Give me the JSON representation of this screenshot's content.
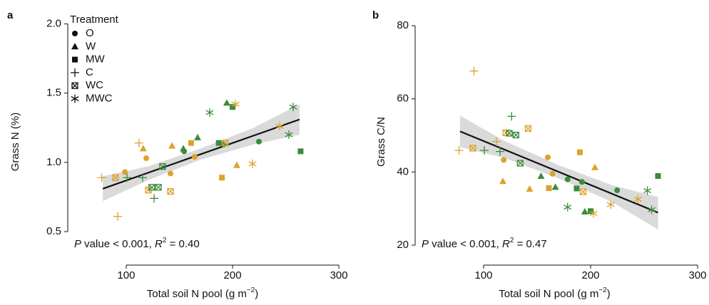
{
  "chart_data": [
    {
      "type": "scatter",
      "panel_label": "a",
      "xlabel": [
        {
          "text": "Total soil N pool (g m"
        },
        {
          "text": "−2",
          "sup": true
        },
        {
          "text": ")"
        }
      ],
      "ylabel": [
        {
          "text": "Grass N (%)"
        }
      ],
      "annotation": [
        {
          "text": "P",
          "italic": true
        },
        {
          "text": " value < 0.001, "
        },
        {
          "text": "R",
          "italic": true
        },
        {
          "text": "2",
          "sup": true
        },
        {
          "text": " = 0.40"
        }
      ],
      "legend_title": "Treatment",
      "legend": "upper left",
      "xlim": [
        47,
        310
      ],
      "ylim": [
        0.32,
        2.08
      ],
      "xticks": [
        100,
        200,
        300
      ],
      "yticks": [
        0.5,
        {
          "value": 1.0,
          "label": "1.0"
        },
        1.5,
        {
          "value": 2.0,
          "label": "2.0"
        }
      ],
      "series": [
        {
          "name": "O",
          "marker": "circle",
          "x": [
            118.8,
            141.6,
            154.4,
            164.4,
            191.9,
            224.8,
            98.7
          ],
          "values": [
            1.03,
            0.92,
            1.08,
            1.04,
            1.13,
            1.15,
            0.93
          ],
          "colors": [
            "#dca22b",
            "#dca22b",
            "#3b8b3a",
            "#dca22b",
            "#3b8b3a",
            "#3b8b3a",
            "#dca22b"
          ]
        },
        {
          "name": "W",
          "marker": "triangle",
          "x": [
            116,
            143,
            153.7,
            167.1,
            194.6,
            204
          ],
          "values": [
            1.1,
            1.12,
            1.1,
            1.18,
            1.43,
            0.98
          ],
          "colors": [
            "#dca22b",
            "#dca22b",
            "#3b8b3a",
            "#3b8b3a",
            "#3b8b3a",
            "#dca22b"
          ]
        },
        {
          "name": "MW",
          "marker": "square",
          "x": [
            161,
            187,
            200,
            190,
            264
          ],
          "values": [
            1.14,
            1.14,
            1.4,
            0.89,
            1.08
          ],
          "colors": [
            "#dca22b",
            "#3b8b3a",
            "#3b8b3a",
            "#dca22b",
            "#3b8b3a"
          ]
        },
        {
          "name": "C",
          "marker": "plus",
          "x": [
            77,
            100.7,
            112,
            92,
            115.4,
            126.2
          ],
          "values": [
            0.89,
            0.89,
            1.14,
            0.61,
            0.89,
            0.74
          ],
          "colors": [
            "#dca22b",
            "#3b8b3a",
            "#dca22b",
            "#dca22b",
            "#3b8b3a",
            "#3b8b3a"
          ]
        },
        {
          "name": "WC",
          "marker": "boxcross",
          "x": [
            89.9,
            120.8,
            124,
            130.2,
            134.2,
            141.6,
            193
          ],
          "values": [
            0.89,
            0.8,
            0.82,
            0.82,
            0.97,
            0.79,
            1.14
          ],
          "colors": [
            "#dca22b",
            "#dca22b",
            "#3b8b3a",
            "#3b8b3a",
            "#3b8b3a",
            "#dca22b",
            "#dca22b"
          ]
        },
        {
          "name": "MWC",
          "marker": "asterisk",
          "x": [
            178.5,
            202.7,
            218.8,
            244.3,
            253,
            257
          ],
          "values": [
            1.36,
            1.42,
            0.99,
            1.26,
            1.2,
            1.4
          ],
          "colors": [
            "#3b8b3a",
            "#dca22b",
            "#dca22b",
            "#dca22b",
            "#3b8b3a",
            "#3b8b3a"
          ]
        }
      ],
      "fit": {
        "x": [
          78,
          263
        ],
        "values": [
          0.81,
          1.31
        ],
        "color": "#111111"
      },
      "band": {
        "x": [
          78,
          120,
          170,
          220,
          263
        ],
        "lower": [
          0.72,
          0.87,
          1.02,
          1.13,
          1.2
        ],
        "upper": [
          0.9,
          0.97,
          1.1,
          1.25,
          1.42
        ],
        "color": "#d6d6d6"
      }
    },
    {
      "type": "scatter",
      "panel_label": "b",
      "xlabel": [
        {
          "text": "Total soil N pool (g m"
        },
        {
          "text": "−2",
          "sup": true
        },
        {
          "text": ")"
        }
      ],
      "ylabel": [
        {
          "text": "Grass C/N"
        }
      ],
      "annotation": [
        {
          "text": "P",
          "italic": true
        },
        {
          "text": " value < 0.001, "
        },
        {
          "text": "R",
          "italic": true
        },
        {
          "text": "2",
          "sup": true
        },
        {
          "text": " = 0.47"
        }
      ],
      "xlim": [
        38,
        308
      ],
      "ylim": [
        16.9,
        83.5
      ],
      "xticks": [
        100,
        200,
        300
      ],
      "yticks": [
        20,
        40,
        60,
        80
      ],
      "series": [
        {
          "marker": "circle",
          "x": [
            118.8,
            160,
            164.4,
            178.5,
            191.9,
            224.8
          ],
          "values": [
            43.3,
            44.0,
            39.5,
            38.0,
            37.3,
            35.0
          ],
          "colors": [
            "#dca22b",
            "#dca22b",
            "#dca22b",
            "#3b8b3a",
            "#3b8b3a",
            "#3b8b3a"
          ]
        },
        {
          "marker": "triangle",
          "x": [
            118,
            143,
            153.7,
            167.1,
            194.6,
            204
          ],
          "values": [
            37.5,
            35.4,
            38.9,
            35.9,
            29.2,
            41.3
          ],
          "colors": [
            "#dca22b",
            "#dca22b",
            "#3b8b3a",
            "#3b8b3a",
            "#3b8b3a",
            "#dca22b"
          ]
        },
        {
          "marker": "square",
          "x": [
            161,
            187,
            200,
            190,
            263
          ],
          "values": [
            35.6,
            35.5,
            29.3,
            45.4,
            38.9
          ],
          "colors": [
            "#dca22b",
            "#3b8b3a",
            "#3b8b3a",
            "#dca22b",
            "#3b8b3a"
          ]
        },
        {
          "marker": "plus",
          "x": [
            77,
            91,
            100.7,
            112,
            115.4,
            126.2
          ],
          "values": [
            45.9,
            67.6,
            45.9,
            48.3,
            45.6,
            55.2
          ],
          "colors": [
            "#dca22b",
            "#dca22b",
            "#3b8b3a",
            "#dca22b",
            "#3b8b3a",
            "#3b8b3a"
          ]
        },
        {
          "marker": "boxcross",
          "x": [
            89.9,
            120.8,
            124,
            130.2,
            134.2,
            141.6,
            193
          ],
          "values": [
            46.5,
            50.7,
            50.6,
            50.1,
            42.4,
            51.9,
            34.6
          ],
          "colors": [
            "#dca22b",
            "#dca22b",
            "#3b8b3a",
            "#3b8b3a",
            "#3b8b3a",
            "#dca22b",
            "#dca22b"
          ]
        },
        {
          "marker": "asterisk",
          "x": [
            178.5,
            202.7,
            218.8,
            244.3,
            253,
            257
          ],
          "values": [
            30.4,
            28.7,
            31.1,
            32.6,
            34.9,
            29.7
          ],
          "colors": [
            "#3b8b3a",
            "#dca22b",
            "#dca22b",
            "#dca22b",
            "#3b8b3a",
            "#3b8b3a"
          ]
        }
      ],
      "fit": {
        "x": [
          78,
          263
        ],
        "values": [
          51.1,
          28.9
        ],
        "color": "#111111"
      },
      "band": {
        "x": [
          78,
          120,
          170,
          220,
          263
        ],
        "lower": [
          46.8,
          43.8,
          38.3,
          31.8,
          24.3
        ],
        "upper": [
          55.4,
          48.4,
          41.9,
          36.4,
          33.2
        ],
        "color": "#d6d6d6"
      }
    }
  ]
}
